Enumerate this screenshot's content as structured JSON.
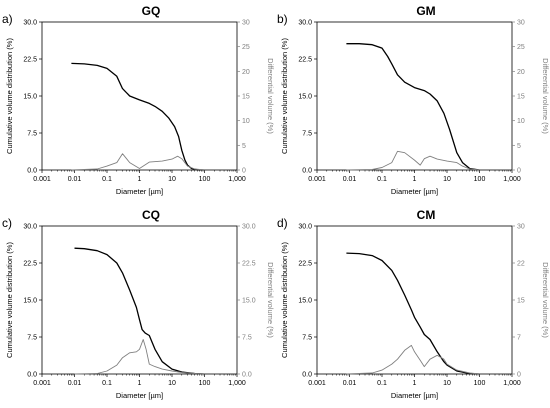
{
  "chart_data": [
    {
      "type": "line",
      "panel_label": "a)",
      "title": "GQ",
      "xlabel": "Diameter [µm]",
      "ylabel": "Cumulative volume distribution (%)",
      "y2label": "Differential volume (%)",
      "xscale": "log",
      "xlim": [
        0.001,
        1000
      ],
      "xticks": [
        "0.001",
        "0.01",
        "0.1",
        "1",
        "10",
        "100",
        "1,000"
      ],
      "ylim": [
        0,
        30
      ],
      "yticks": [
        "0.0",
        "7.5",
        "15.0",
        "22.5",
        "30.0"
      ],
      "y2lim": [
        0,
        30
      ],
      "y2ticks": [
        "0",
        "5",
        "10",
        "15",
        "20",
        "25",
        "30"
      ],
      "series": [
        {
          "color": "#000000",
          "axis": "left",
          "x": [
            0.008,
            0.02,
            0.05,
            0.1,
            0.2,
            0.3,
            0.5,
            1,
            2,
            3,
            5,
            8,
            12,
            16,
            20,
            25,
            30,
            40,
            60,
            100
          ],
          "y": [
            21.6,
            21.5,
            21.2,
            20.6,
            19.0,
            16.5,
            15.0,
            14.2,
            13.5,
            12.9,
            11.9,
            10.5,
            8.8,
            6.8,
            4.0,
            2.0,
            1.0,
            0.3,
            0.05,
            0.0
          ]
        },
        {
          "color": "#808080",
          "axis": "right",
          "x": [
            0.008,
            0.05,
            0.1,
            0.2,
            0.3,
            0.5,
            1,
            2,
            5,
            10,
            15,
            20,
            30,
            50,
            100
          ],
          "y": [
            0.0,
            0.2,
            0.8,
            1.5,
            3.3,
            1.5,
            0.3,
            1.6,
            1.8,
            2.2,
            2.8,
            2.3,
            0.8,
            0.2,
            0.0
          ]
        }
      ]
    },
    {
      "type": "line",
      "panel_label": "b)",
      "title": "GM",
      "xlabel": "Diameter [µm]",
      "ylabel": "Cumulative volume distribution (%)",
      "y2label": "Differential volume (%)",
      "xscale": "log",
      "xlim": [
        0.001,
        1000
      ],
      "xticks": [
        "0.001",
        "0.01",
        "0.1",
        "1",
        "10",
        "100",
        "1,000"
      ],
      "ylim": [
        0,
        30
      ],
      "yticks": [
        "0.0",
        "7.5",
        "15.0",
        "22.5",
        "30.0"
      ],
      "y2lim": [
        0,
        30
      ],
      "y2ticks": [
        "0",
        "5",
        "10",
        "15",
        "20",
        "25",
        "30"
      ],
      "series": [
        {
          "color": "#000000",
          "axis": "left",
          "x": [
            0.008,
            0.02,
            0.05,
            0.1,
            0.15,
            0.2,
            0.3,
            0.5,
            1,
            2,
            3,
            5,
            8,
            12,
            20,
            30,
            50,
            100
          ],
          "y": [
            25.6,
            25.6,
            25.4,
            24.7,
            23.0,
            21.5,
            19.3,
            17.8,
            16.7,
            16.1,
            15.4,
            14.0,
            11.5,
            8.2,
            3.5,
            1.5,
            0.3,
            0.0
          ]
        },
        {
          "color": "#808080",
          "axis": "right",
          "x": [
            0.008,
            0.05,
            0.1,
            0.2,
            0.3,
            0.5,
            1,
            1.5,
            2,
            3,
            5,
            10,
            20,
            30,
            50,
            100
          ],
          "y": [
            0.0,
            0.1,
            0.5,
            1.5,
            3.8,
            3.5,
            2.0,
            1.0,
            2.3,
            2.8,
            2.2,
            1.8,
            1.5,
            0.8,
            0.2,
            0.0
          ]
        }
      ]
    },
    {
      "type": "line",
      "panel_label": "c)",
      "title": "CQ",
      "xlabel": "Diameter [µm]",
      "ylabel": "Cumulative volume distribution (%)",
      "y2label": "Differential volume (%)",
      "xscale": "log",
      "xlim": [
        0.001,
        1000
      ],
      "xticks": [
        "0.001",
        "0.01",
        "0.1",
        "1",
        "10",
        "100",
        "1,000"
      ],
      "ylim": [
        0,
        30
      ],
      "yticks": [
        "0.0",
        "7.5",
        "15.0",
        "22.5",
        "30.0"
      ],
      "y2lim": [
        0,
        30
      ],
      "y2ticks": [
        "0.0",
        "7.5",
        "15.0",
        "22.5",
        "30.0"
      ],
      "series": [
        {
          "color": "#000000",
          "axis": "left",
          "x": [
            0.01,
            0.02,
            0.05,
            0.1,
            0.2,
            0.3,
            0.5,
            0.8,
            1,
            1.2,
            1.5,
            2,
            3,
            5,
            10,
            20,
            50,
            100
          ],
          "y": [
            25.5,
            25.4,
            25.0,
            24.2,
            22.5,
            20.5,
            17.0,
            13.5,
            11.0,
            9.0,
            8.3,
            7.8,
            5.0,
            2.5,
            1.0,
            0.4,
            0.1,
            0.0
          ]
        },
        {
          "color": "#808080",
          "axis": "right",
          "x": [
            0.01,
            0.05,
            0.1,
            0.2,
            0.3,
            0.5,
            0.8,
            1,
            1.3,
            1.6,
            2,
            3,
            5,
            10,
            20,
            50,
            100
          ],
          "y": [
            0.0,
            0.1,
            0.6,
            1.8,
            3.3,
            4.3,
            4.5,
            5.0,
            7.0,
            5.0,
            2.0,
            1.5,
            1.0,
            0.6,
            0.3,
            0.1,
            0.0
          ]
        }
      ]
    },
    {
      "type": "line",
      "panel_label": "d)",
      "title": "CM",
      "xlabel": "Diameter [µm]",
      "ylabel": "Cumulative volume distribution (%)",
      "y2label": "Differential volume (%)",
      "xscale": "log",
      "xlim": [
        0.001,
        1000
      ],
      "xticks": [
        "0.001",
        "0.01",
        "0.1",
        "1",
        "10",
        "100",
        "1,000"
      ],
      "ylim": [
        0,
        30
      ],
      "yticks": [
        "0.0",
        "7.5",
        "15.0",
        "22.5",
        "30.0"
      ],
      "y2lim": [
        0,
        30
      ],
      "y2ticks": [
        "0",
        "7",
        "15",
        "22",
        "30"
      ],
      "series": [
        {
          "color": "#000000",
          "axis": "left",
          "x": [
            0.008,
            0.02,
            0.05,
            0.1,
            0.2,
            0.3,
            0.5,
            0.8,
            1,
            1.5,
            2,
            3,
            5,
            8,
            10,
            20,
            50,
            100
          ],
          "y": [
            24.5,
            24.4,
            24.0,
            23.0,
            21.0,
            19.0,
            16.0,
            13.0,
            11.5,
            9.5,
            8.0,
            7.0,
            4.5,
            2.5,
            1.8,
            0.6,
            0.1,
            0.0
          ]
        },
        {
          "color": "#808080",
          "axis": "right",
          "x": [
            0.008,
            0.05,
            0.1,
            0.2,
            0.3,
            0.5,
            0.8,
            1,
            1.5,
            2,
            3,
            5,
            8,
            10,
            20,
            50,
            100
          ],
          "y": [
            0.0,
            0.2,
            0.8,
            2.0,
            3.0,
            4.8,
            5.8,
            4.5,
            2.8,
            1.5,
            3.0,
            3.8,
            3.0,
            2.0,
            0.8,
            0.2,
            0.0
          ]
        }
      ]
    }
  ]
}
